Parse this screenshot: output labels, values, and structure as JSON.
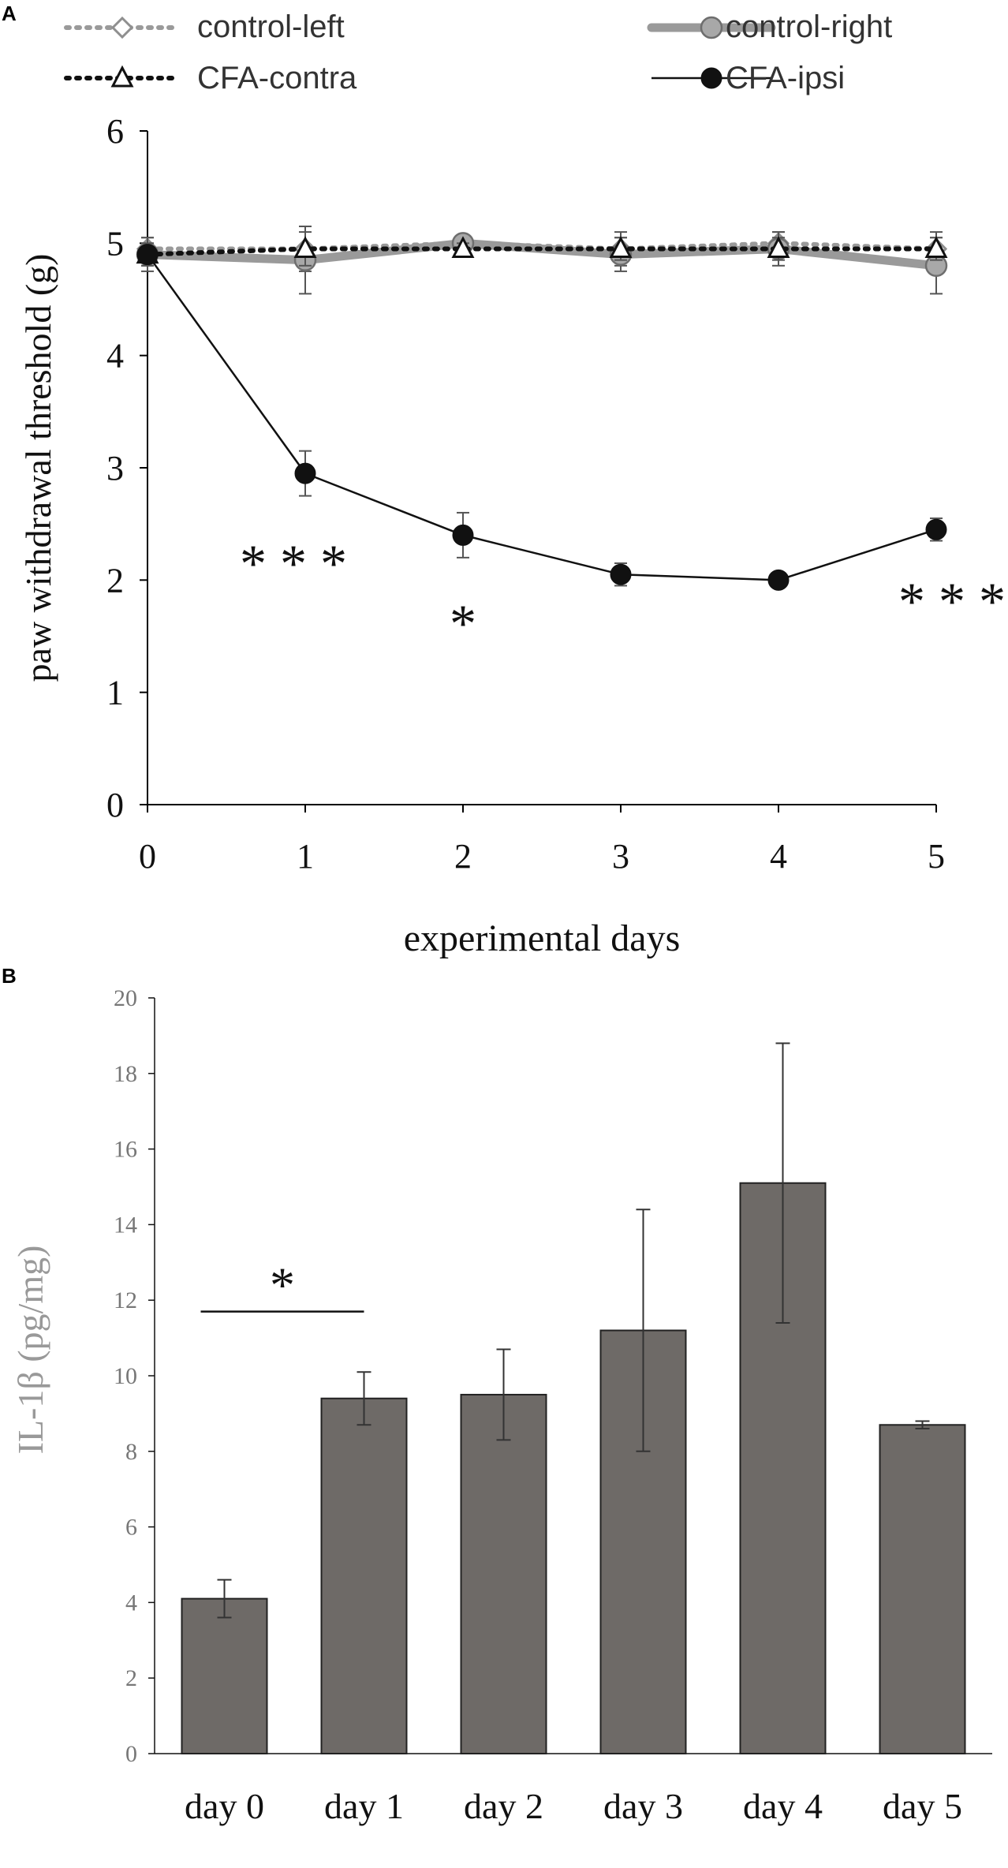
{
  "chart_data": [
    {
      "panel": "A",
      "type": "line",
      "xlabel": "experimental   days",
      "ylabel": "paw withdrawal threshold (g)",
      "xlim": [
        0,
        5
      ],
      "ylim": [
        0,
        6
      ],
      "xticks": [
        0,
        1,
        2,
        3,
        4,
        5
      ],
      "yticks": [
        0,
        1,
        2,
        3,
        4,
        5,
        6
      ],
      "x": [
        0,
        1,
        2,
        3,
        4,
        5
      ],
      "legend_position": "top",
      "series": [
        {
          "name": "control-left",
          "values": [
            4.95,
            4.95,
            5.0,
            4.95,
            5.0,
            4.95
          ],
          "err": [
            0.1,
            0.2,
            0.05,
            0.15,
            0.1,
            0.15
          ],
          "color": "#9a9a9a",
          "line": "dotted",
          "marker": "diamond-open"
        },
        {
          "name": "control-right",
          "values": [
            4.9,
            4.85,
            5.0,
            4.9,
            4.95,
            4.8
          ],
          "err": [
            0.15,
            0.3,
            0.05,
            0.15,
            0.15,
            0.25
          ],
          "color": "#9a9a9a",
          "line": "thick",
          "marker": "circle-gray"
        },
        {
          "name": "CFA-contra",
          "values": [
            4.9,
            4.95,
            4.95,
            4.95,
            4.95,
            4.95
          ],
          "err": [
            0.1,
            0.15,
            0.05,
            0.1,
            0.1,
            0.1
          ],
          "color": "#111111",
          "line": "dotted",
          "marker": "triangle-open"
        },
        {
          "name": "CFA-ipsi",
          "values": [
            4.9,
            2.95,
            2.4,
            2.05,
            2.0,
            2.45
          ],
          "err": [
            0.1,
            0.2,
            0.2,
            0.1,
            0.05,
            0.1
          ],
          "color": "#111111",
          "line": "solid",
          "marker": "circle-filled"
        }
      ],
      "annotations": [
        {
          "text": "* * *",
          "x": 1
        },
        {
          "text": "*",
          "x": 2
        },
        {
          "text": "* * *",
          "x": 5
        }
      ]
    },
    {
      "panel": "B",
      "type": "bar",
      "ylabel": "IL-1β (pg/mg)",
      "categories": [
        "day 0",
        "day 1",
        "day 2",
        "day 3",
        "day 4",
        "day 5"
      ],
      "values": [
        4.1,
        9.4,
        9.5,
        11.2,
        15.1,
        8.7
      ],
      "err": [
        0.5,
        0.7,
        1.2,
        3.2,
        3.7,
        0.1
      ],
      "ylim": [
        0,
        20
      ],
      "yticks": [
        0,
        2,
        4,
        6,
        8,
        10,
        12,
        14,
        16,
        18,
        20
      ],
      "bar_color": "#6e6a67",
      "annotations": [
        {
          "text": "*",
          "from": "day 0",
          "to": "day 1",
          "y": 11.7
        }
      ]
    }
  ]
}
